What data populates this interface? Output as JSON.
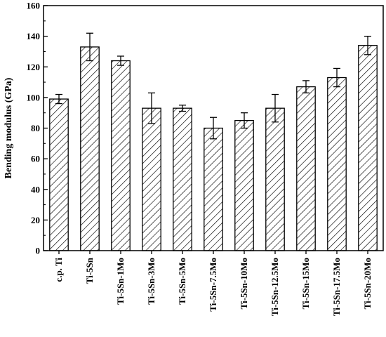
{
  "chart_data": {
    "type": "bar",
    "title": "",
    "xlabel": "",
    "ylabel": "Bending modulus (GPa)",
    "ylim": [
      0,
      160
    ],
    "yticks": [
      0,
      20,
      40,
      60,
      80,
      100,
      120,
      140,
      160
    ],
    "y_minor_step": 10,
    "grid": false,
    "bar_fill": "hatched",
    "categories": [
      "c.p. Ti",
      "Ti-5Sn",
      "Ti-5Sn-1Mo",
      "Ti-5Sn-3Mo",
      "Ti-5Sn-5Mo",
      "Ti-5Sn-7.5Mo",
      "Ti-5Sn-10Mo",
      "Ti-5Sn-12.5Mo",
      "Ti-5Sn-15Mo",
      "Ti-5Sn-17.5Mo",
      "Ti-5Sn-20Mo"
    ],
    "values": [
      99,
      133,
      124,
      93,
      93,
      80,
      85,
      93,
      107,
      113,
      134
    ],
    "errors": [
      3,
      9,
      3,
      10,
      2,
      7,
      5,
      9,
      4,
      6,
      6
    ]
  }
}
